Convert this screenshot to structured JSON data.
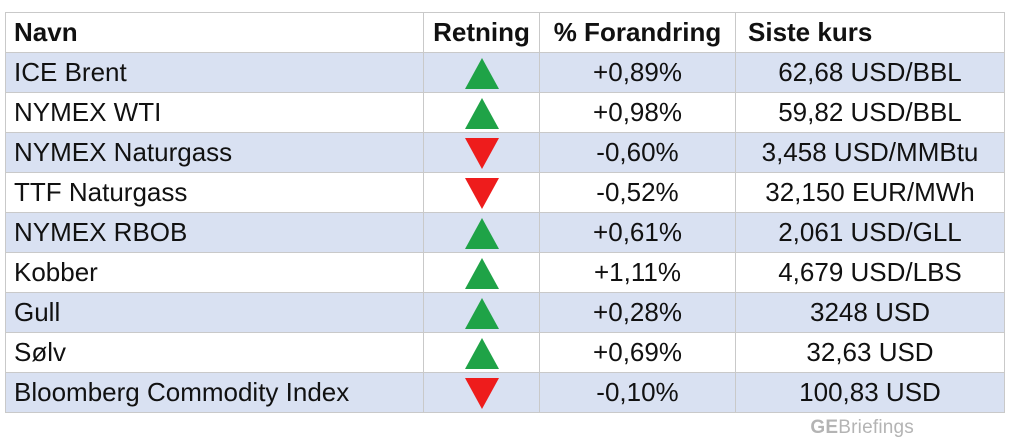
{
  "table": {
    "headers": {
      "name": "Navn",
      "direction": "Retning",
      "change": "% Forandring",
      "price": "Siste kurs"
    },
    "rows": [
      {
        "name": "ICE Brent",
        "direction": "up",
        "change": "+0,89%",
        "price": "62,68 USD/BBL"
      },
      {
        "name": "NYMEX WTI",
        "direction": "up",
        "change": "+0,98%",
        "price": "59,82 USD/BBL"
      },
      {
        "name": "NYMEX Naturgass",
        "direction": "down",
        "change": "-0,60%",
        "price": "3,458 USD/MMBtu"
      },
      {
        "name": "TTF Naturgass",
        "direction": "down",
        "change": "-0,52%",
        "price": "32,150 EUR/MWh"
      },
      {
        "name": "NYMEX RBOB",
        "direction": "up",
        "change": "+0,61%",
        "price": "2,061 USD/GLL"
      },
      {
        "name": "Kobber",
        "direction": "up",
        "change": "+1,11%",
        "price": "4,679 USD/LBS"
      },
      {
        "name": "Gull",
        "direction": "up",
        "change": "+0,28%",
        "price": "3248 USD"
      },
      {
        "name": "Sølv",
        "direction": "up",
        "change": "+0,69%",
        "price": "32,63 USD"
      },
      {
        "name": "Bloomberg Commodity Index",
        "direction": "down",
        "change": "-0,10%",
        "price": "100,83 USD"
      }
    ]
  },
  "icons": {
    "up": "triangle-up-icon",
    "down": "triangle-down-icon"
  },
  "colors": {
    "up": "#1fa347",
    "down": "#ee1c1c",
    "stripe": "#d9e1f2",
    "brand": "#b4b4b4"
  },
  "brand": {
    "prefix": "GE",
    "suffix": "Briefings"
  }
}
